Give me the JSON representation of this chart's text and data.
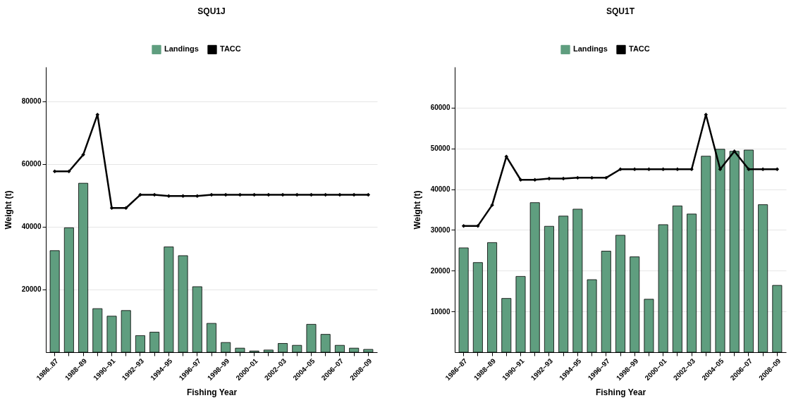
{
  "chart_data": [
    {
      "type": "bar",
      "title": "SQU1J",
      "xlabel": "Fishing Year",
      "ylabel": "Weight (t)",
      "categories": [
        "1986..87",
        null,
        "1988–89",
        null,
        "1990–91",
        null,
        "1992–93",
        null,
        "1994–95",
        null,
        "1996–97",
        null,
        "1998–99",
        null,
        "2000–01",
        null,
        "2002–03",
        null,
        "2004–05",
        null,
        "2006–07",
        null,
        "2008–09"
      ],
      "series": [
        {
          "name": "Landings",
          "color": "#5f9e7f",
          "values": [
            32400,
            39700,
            53900,
            13900,
            11500,
            13300,
            5300,
            6400,
            33600,
            30800,
            20900,
            9200,
            3100,
            1300,
            400,
            700,
            2800,
            2200,
            8900,
            5700,
            2200,
            1300,
            900
          ]
        },
        {
          "name": "TACC",
          "type": "line",
          "color": "#000000",
          "values": [
            57700,
            57700,
            63000,
            75800,
            46000,
            46000,
            50200,
            50200,
            49800,
            49800,
            49800,
            50200,
            50200,
            50200,
            50200,
            50200,
            50200,
            50200,
            50200,
            50200,
            50200,
            50200,
            50200
          ]
        }
      ],
      "ylim": [
        0,
        91000
      ],
      "yticks": [
        20000,
        40000,
        60000,
        80000
      ],
      "grid": "y",
      "legend": "top",
      "marker": "diamond"
    },
    {
      "type": "bar",
      "title": "SQU1T",
      "xlabel": "Fishing Year",
      "ylabel": "Weight (t)",
      "categories": [
        "1986–87",
        null,
        "1988–89",
        null,
        "1990–91",
        null,
        "1992–93",
        null,
        "1994–95",
        null,
        "1996–97",
        null,
        "1998–99",
        null,
        "2000–01",
        null,
        "2002–03",
        null,
        "2004–05",
        null,
        "2006–07",
        null,
        "2008–09"
      ],
      "series": [
        {
          "name": "Landings",
          "color": "#5f9e7f",
          "values": [
            25600,
            22000,
            26900,
            13200,
            18600,
            36700,
            30900,
            33400,
            35100,
            17800,
            24800,
            28700,
            23400,
            13000,
            31300,
            35900,
            33900,
            48100,
            49800,
            49300,
            49600,
            36200,
            16400
          ]
        },
        {
          "name": "TACC",
          "type": "line",
          "color": "#000000",
          "values": [
            31000,
            31000,
            36100,
            48000,
            42300,
            42300,
            42600,
            42600,
            42800,
            42800,
            42800,
            44900,
            44900,
            44900,
            44900,
            44900,
            44900,
            58300,
            44900,
            49300,
            44900,
            44900,
            44900
          ]
        }
      ],
      "ylim": [
        0,
        70000
      ],
      "yticks": [
        10000,
        20000,
        30000,
        40000,
        50000,
        60000
      ],
      "grid": "y",
      "legend": "top",
      "marker": "diamond"
    }
  ]
}
